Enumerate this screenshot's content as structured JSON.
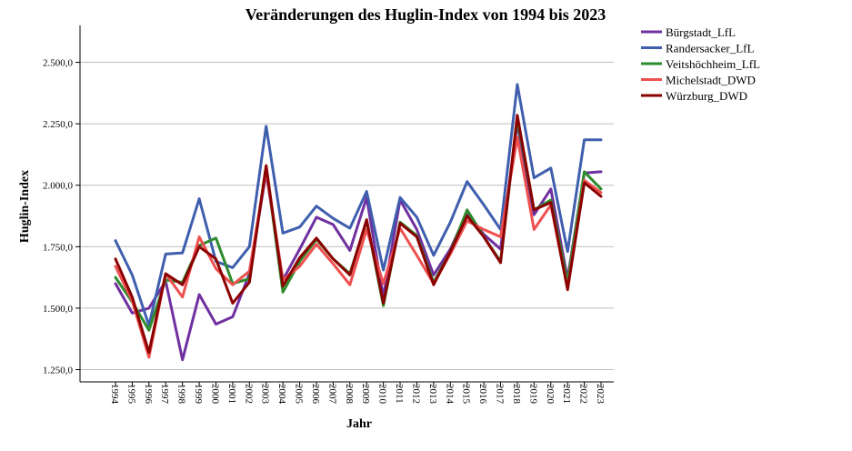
{
  "chart_data": {
    "type": "line",
    "title": "Veränderungen des Huglin-Index von 1994 bis 2023",
    "xlabel": "Jahr",
    "ylabel": "Huglin-Index",
    "ylim": [
      1200,
      2650
    ],
    "yticks": [
      1250,
      1500,
      1750,
      2000,
      2250,
      2500
    ],
    "ytick_labels": [
      "1.250,0",
      "1.500,0",
      "1.750,0",
      "2.000,0",
      "2.250,0",
      "2.500,0"
    ],
    "grid": "horizontal",
    "legend_position": "top-right",
    "x": [
      "1994",
      "1995",
      "1996",
      "1997",
      "1998",
      "1999",
      "2000",
      "2001",
      "2002",
      "2003",
      "2004",
      "2005",
      "2006",
      "2007",
      "2008",
      "2009",
      "2010",
      "2011",
      "2012",
      "2013",
      "2014",
      "2015",
      "2016",
      "2017",
      "2018",
      "2019",
      "2020",
      "2021",
      "2022",
      "2023"
    ],
    "series": [
      {
        "name": "Bürgstadt_LfL",
        "color": "#7030a0",
        "values": [
          1600,
          1480,
          1500,
          1610,
          1290,
          1555,
          1435,
          1465,
          1640,
          2050,
          1615,
          1740,
          1870,
          1840,
          1735,
          1950,
          1545,
          1940,
          1820,
          1635,
          1740,
          1890,
          1800,
          1740,
          2250,
          1880,
          1985,
          1620,
          2050,
          2055
        ]
      },
      {
        "name": "Randersacker_LfL",
        "color": "#3f5fae",
        "values": [
          1775,
          1635,
          1430,
          1720,
          1725,
          1945,
          1690,
          1665,
          1750,
          2240,
          1805,
          1830,
          1915,
          1865,
          1825,
          1975,
          1655,
          1950,
          1870,
          1715,
          1850,
          2015,
          1920,
          1820,
          2410,
          2030,
          2070,
          1730,
          2185,
          2185
        ]
      },
      {
        "name": "Veitshöchheim_LfL",
        "color": "#2e8b2e",
        "values": [
          1625,
          1525,
          1410,
          1615,
          1605,
          1755,
          1785,
          1600,
          1620,
          2075,
          1565,
          1690,
          1780,
          1700,
          1640,
          1855,
          1510,
          1850,
          1795,
          1605,
          1730,
          1900,
          1790,
          1690,
          2270,
          1900,
          1940,
          1605,
          2055,
          1985
        ]
      },
      {
        "name": "Michelstadt_DWD",
        "color": "#ee5050",
        "values": [
          1670,
          1530,
          1300,
          1640,
          1545,
          1790,
          1660,
          1595,
          1650,
          2060,
          1615,
          1670,
          1760,
          1680,
          1595,
          1820,
          1600,
          1825,
          1715,
          1600,
          1720,
          1855,
          1820,
          1790,
          2195,
          1820,
          1920,
          1580,
          2020,
          1970
        ]
      },
      {
        "name": "Würzburg_DWD",
        "color": "#8b0000",
        "values": [
          1700,
          1545,
          1320,
          1640,
          1595,
          1750,
          1700,
          1520,
          1605,
          2080,
          1590,
          1705,
          1785,
          1700,
          1635,
          1860,
          1520,
          1845,
          1790,
          1595,
          1730,
          1875,
          1790,
          1685,
          2285,
          1900,
          1930,
          1575,
          2010,
          1955
        ]
      }
    ]
  }
}
